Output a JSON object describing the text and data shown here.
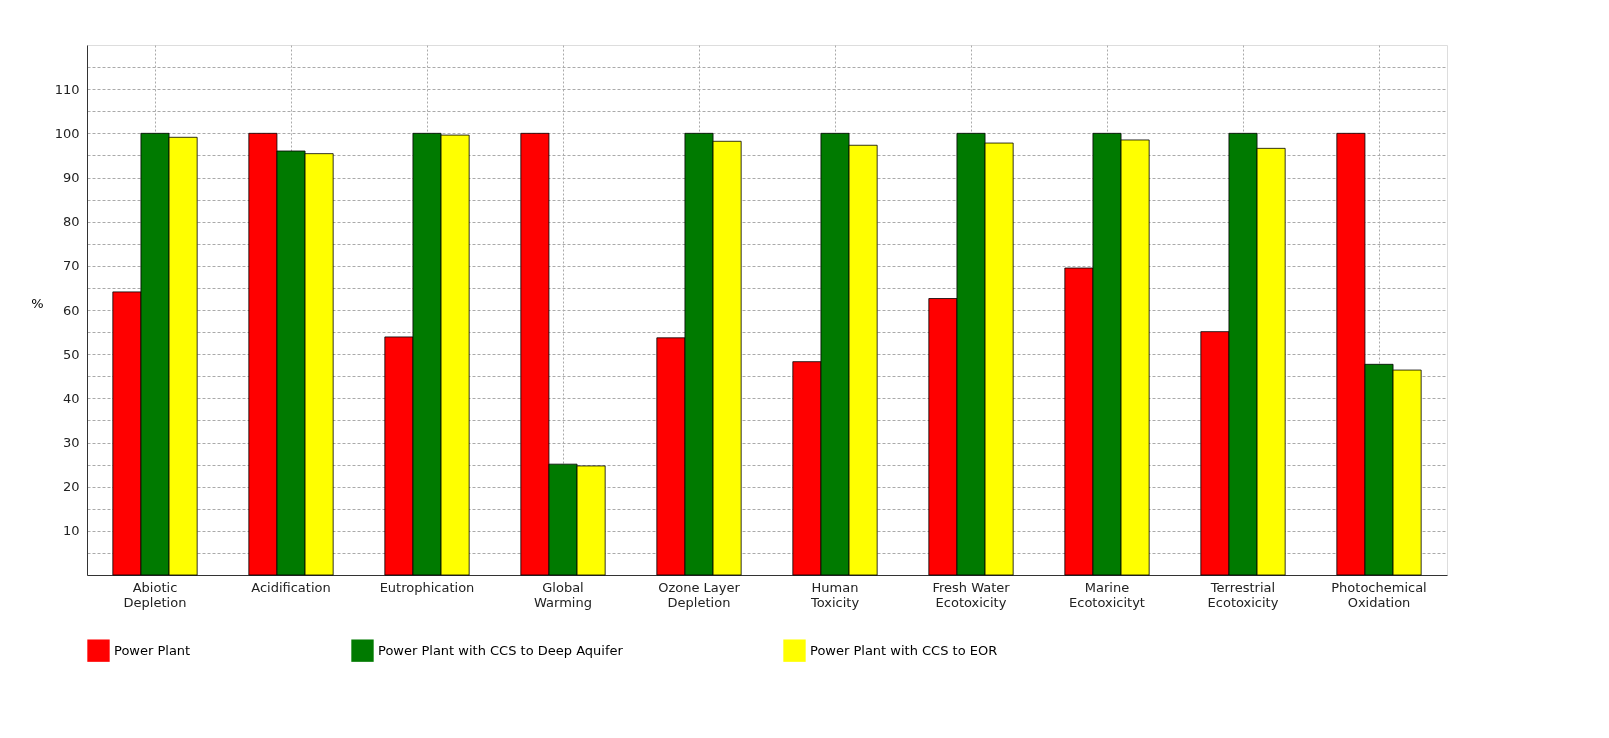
{
  "chart_data": {
    "type": "bar",
    "ylabel": "%",
    "categories": [
      "Abiotic Depletion",
      "Acidification",
      "Eutrophication",
      "Global Warming",
      "Ozone Layer Depletion",
      "Human Toxicity",
      "Fresh Water Ecotoxicity",
      "Marine Ecotoxicityt",
      "Terrestrial Ecotoxicity",
      "Photochemical Oxidation"
    ],
    "series": [
      {
        "name": "Power Plant",
        "color": "#ff0000",
        "values": [
          64.1,
          100,
          53.9,
          100,
          53.7,
          48.3,
          62.6,
          69.5,
          55.1,
          100
        ]
      },
      {
        "name": "Power Plant with CCS to Deep Aquifer",
        "color": "#007a00",
        "values": [
          100,
          96.0,
          100,
          25.1,
          100,
          100,
          100,
          100,
          100,
          47.7
        ]
      },
      {
        "name": "Power Plant with CCS to EOR",
        "color": "#ffff00",
        "values": [
          99.1,
          95.4,
          99.6,
          24.7,
          98.2,
          97.3,
          97.8,
          98.5,
          96.6,
          46.4
        ]
      }
    ],
    "ylim": [
      0,
      120
    ],
    "yticks": [
      {
        "value": 5,
        "label": null
      },
      10,
      {
        "value": 15,
        "label": null
      },
      20,
      {
        "value": 25,
        "label": null
      },
      30,
      {
        "value": 35,
        "label": null
      },
      40,
      {
        "value": 45,
        "label": null
      },
      50,
      {
        "value": 55,
        "label": null
      },
      60,
      {
        "value": 65,
        "label": null
      },
      70,
      {
        "value": 75,
        "label": null
      },
      80,
      {
        "value": 85,
        "label": null
      },
      90,
      {
        "value": 95,
        "label": null
      },
      100,
      {
        "value": 105,
        "label": null
      },
      110,
      {
        "value": 115,
        "label": null
      }
    ],
    "grid": true,
    "legend": "bottom"
  }
}
